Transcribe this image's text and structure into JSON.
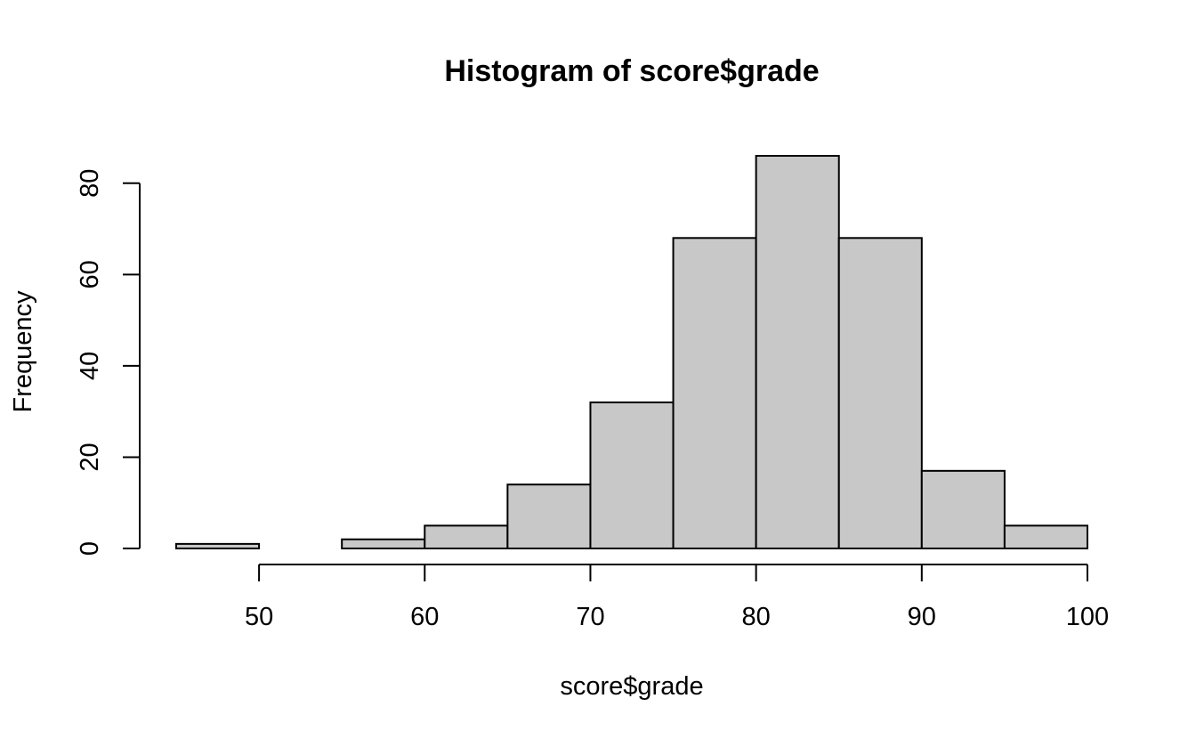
{
  "chart_data": {
    "type": "bar",
    "title": "Histogram of score$grade",
    "xlabel": "score$grade",
    "ylabel": "Frequency",
    "bins": [
      {
        "from": 45,
        "to": 50,
        "count": 1
      },
      {
        "from": 50,
        "to": 55,
        "count": 0
      },
      {
        "from": 55,
        "to": 60,
        "count": 2
      },
      {
        "from": 60,
        "to": 65,
        "count": 5
      },
      {
        "from": 65,
        "to": 70,
        "count": 14
      },
      {
        "from": 70,
        "to": 75,
        "count": 32
      },
      {
        "from": 75,
        "to": 80,
        "count": 68
      },
      {
        "from": 80,
        "to": 85,
        "count": 86
      },
      {
        "from": 85,
        "to": 90,
        "count": 68
      },
      {
        "from": 90,
        "to": 95,
        "count": 17
      },
      {
        "from": 95,
        "to": 100,
        "count": 5
      }
    ],
    "x_ticks": [
      50,
      60,
      70,
      80,
      90,
      100
    ],
    "y_ticks": [
      0,
      20,
      40,
      60,
      80
    ],
    "xlim": [
      45,
      100
    ],
    "ylim": [
      0,
      86
    ],
    "bar_color": "#c8c8c8",
    "outline_color": "#000000",
    "grid": false,
    "legend": "none"
  }
}
